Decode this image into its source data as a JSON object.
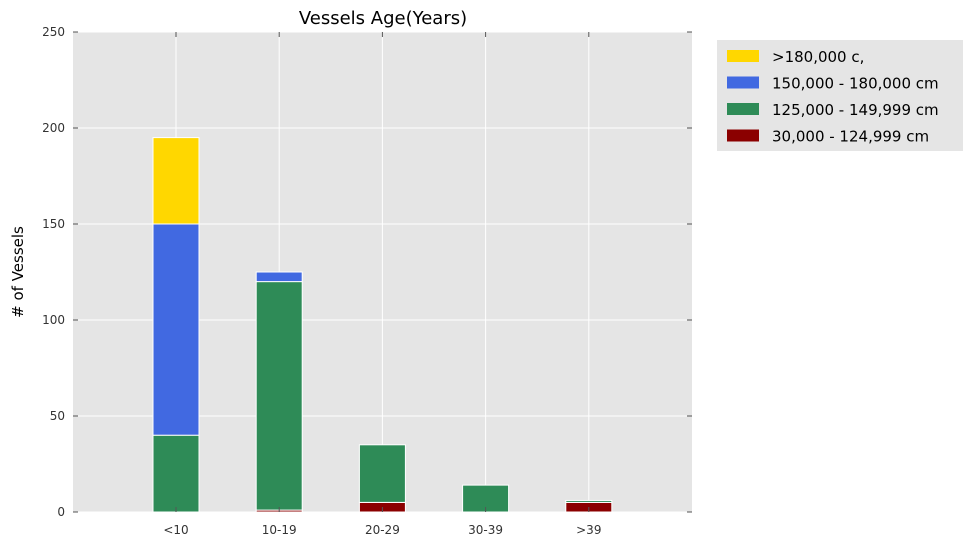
{
  "chart_data": {
    "type": "bar",
    "stacked": true,
    "title": "Vessels Age(Years)",
    "xlabel": "",
    "ylabel": "# of Vessels",
    "categories": [
      "<10",
      "10-19",
      "20-29",
      "30-39",
      ">39"
    ],
    "ylim": [
      0,
      250
    ],
    "yticks": [
      0,
      50,
      100,
      150,
      200,
      250
    ],
    "grid": true,
    "legend_position": "outside-top-right",
    "series": [
      {
        "name": "30,000 - 124,999 cm",
        "color": "#8b0000",
        "values": [
          0,
          1,
          5,
          0,
          5
        ]
      },
      {
        "name": "125,000 - 149,999 cm",
        "color": "#2e8b57",
        "values": [
          40,
          119,
          30,
          14,
          1
        ]
      },
      {
        "name": "150,000 - 180,000 cm",
        "color": "#4169e1",
        "values": [
          110,
          5,
          0,
          0,
          0
        ]
      },
      {
        "name": ">180,000 c,",
        "color": "#ffd700",
        "values": [
          45,
          0,
          0,
          0,
          0
        ]
      }
    ],
    "legend_order": [
      ">180,000 c,",
      "150,000 - 180,000 cm",
      "125,000 - 149,999 cm",
      "30,000 - 124,999 cm"
    ],
    "plot_background": "#e5e5e5",
    "grid_color": "#ffffff"
  }
}
